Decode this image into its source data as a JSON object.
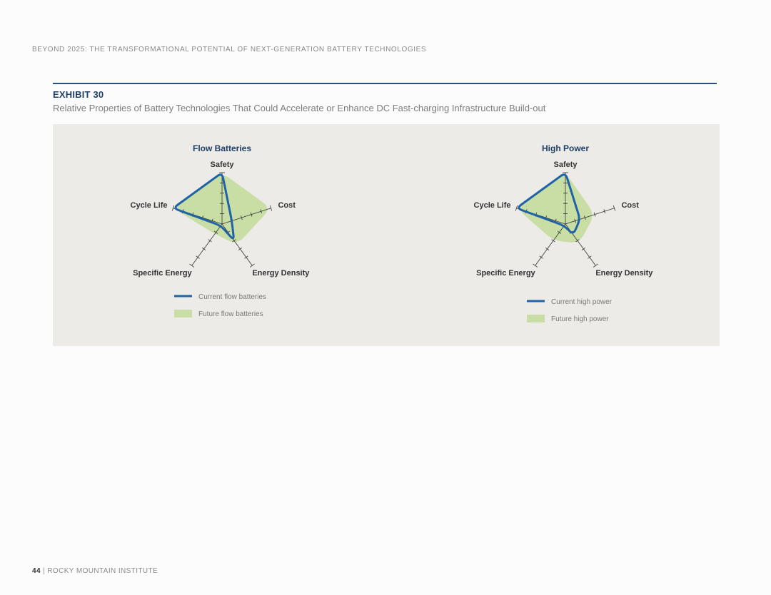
{
  "header": {
    "running_title": "BEYOND 2025: THE TRANSFORMATIONAL POTENTIAL OF NEXT-GENERATION BATTERY TECHNOLOGIES"
  },
  "exhibit": {
    "label": "EXHIBIT 30",
    "title": "Relative Properties of Battery Technologies That Could Accelerate or Enhance DC Fast-charging Infrastructure Build-out"
  },
  "colors": {
    "current_line": "#1f63a7",
    "future_fill": "#c9dea5",
    "axis": "#333333",
    "panel": "#ecebe7"
  },
  "chart_data": [
    {
      "type": "radar",
      "title": "Flow Batteries",
      "axes": [
        "Safety",
        "Cost",
        "Energy Density",
        "Specific Energy",
        "Cycle Life"
      ],
      "scale_max": 5,
      "legend_placement": "bottom",
      "series": [
        {
          "name": "Current flow batteries",
          "style": "line",
          "values": [
            5,
            1,
            2,
            0.2,
            5
          ]
        },
        {
          "name": "Future flow batteries",
          "style": "area",
          "values": [
            5,
            5,
            2.5,
            1.2,
            5
          ]
        }
      ]
    },
    {
      "type": "radar",
      "title": "High Power",
      "axes": [
        "Safety",
        "Cost",
        "Energy Density",
        "Specific Energy",
        "Cycle Life"
      ],
      "scale_max": 5,
      "legend_placement": "bottom",
      "series": [
        {
          "name": "Current high power",
          "style": "line",
          "values": [
            5,
            1.5,
            1.3,
            0.2,
            5
          ]
        },
        {
          "name": "Future high power",
          "style": "area",
          "values": [
            5,
            3,
            2.3,
            2,
            5
          ]
        }
      ]
    }
  ],
  "footer": {
    "page_number": "44",
    "text": " | ROCKY MOUNTAIN INSTITUTE"
  }
}
